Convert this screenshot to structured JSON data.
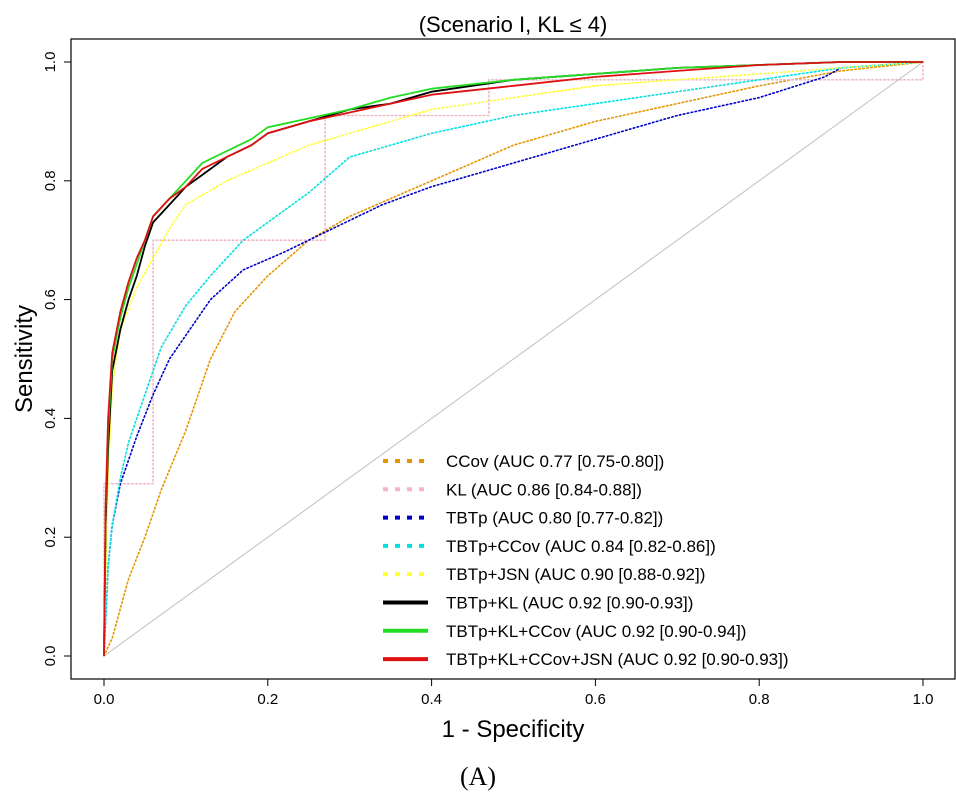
{
  "chart_data": {
    "type": "line",
    "title": "(Scenario I, KL ≤ 4)",
    "xlabel": "1 - Specificity",
    "ylabel": "Sensitivity",
    "xlim": [
      0,
      1
    ],
    "ylim": [
      0,
      1
    ],
    "x_ticks": [
      "0.0",
      "0.2",
      "0.4",
      "0.6",
      "0.8",
      "1.0"
    ],
    "y_ticks": [
      "0.0",
      "0.2",
      "0.4",
      "0.6",
      "0.8",
      "1.0"
    ],
    "grid": false,
    "legend_position": "bottom-right",
    "caption": "(A)",
    "reference_line": {
      "x": [
        0,
        1
      ],
      "y": [
        0,
        1
      ],
      "color": "#c0c0c0"
    },
    "series": [
      {
        "name": "CCov (AUC 0.77 [0.75-0.80])",
        "color": "#e69500",
        "style": "dotted",
        "x": [
          0,
          0.01,
          0.02,
          0.03,
          0.05,
          0.07,
          0.1,
          0.13,
          0.16,
          0.2,
          0.25,
          0.3,
          0.35,
          0.4,
          0.45,
          0.5,
          0.55,
          0.6,
          0.7,
          0.8,
          0.9,
          1.0
        ],
        "y": [
          0,
          0.03,
          0.08,
          0.13,
          0.2,
          0.28,
          0.38,
          0.5,
          0.58,
          0.64,
          0.7,
          0.74,
          0.77,
          0.8,
          0.83,
          0.86,
          0.88,
          0.9,
          0.93,
          0.96,
          0.985,
          1.0
        ]
      },
      {
        "name": "KL (AUC 0.86 [0.84-0.88])",
        "color": "#f4b6c2",
        "style": "dotted",
        "x": [
          0,
          0,
          0.06,
          0.06,
          0.27,
          0.27,
          0.47,
          0.47,
          1.0,
          1.0
        ],
        "y": [
          0,
          0.29,
          0.29,
          0.7,
          0.7,
          0.91,
          0.91,
          0.97,
          0.97,
          1.0
        ]
      },
      {
        "name": "TBTp (AUC 0.80 [0.77-0.82])",
        "color": "#0000c8",
        "style": "dotted",
        "x": [
          0,
          0.005,
          0.01,
          0.02,
          0.04,
          0.06,
          0.08,
          0.1,
          0.13,
          0.17,
          0.22,
          0.28,
          0.34,
          0.4,
          0.45,
          0.5,
          0.55,
          0.6,
          0.65,
          0.7,
          0.8,
          0.88,
          0.9,
          1.0
        ],
        "y": [
          0,
          0.15,
          0.22,
          0.29,
          0.37,
          0.44,
          0.5,
          0.54,
          0.6,
          0.65,
          0.68,
          0.72,
          0.76,
          0.79,
          0.81,
          0.83,
          0.85,
          0.87,
          0.89,
          0.91,
          0.94,
          0.975,
          0.99,
          1.0
        ]
      },
      {
        "name": "TBTp+CCov (AUC 0.84 [0.82-0.86])",
        "color": "#00e0e0",
        "style": "dotted",
        "x": [
          0,
          0.005,
          0.01,
          0.02,
          0.03,
          0.05,
          0.07,
          0.1,
          0.13,
          0.17,
          0.21,
          0.25,
          0.3,
          0.35,
          0.4,
          0.5,
          0.6,
          0.7,
          0.8,
          0.9,
          1.0
        ],
        "y": [
          0,
          0.15,
          0.22,
          0.3,
          0.36,
          0.44,
          0.52,
          0.59,
          0.64,
          0.7,
          0.74,
          0.78,
          0.84,
          0.86,
          0.88,
          0.91,
          0.93,
          0.95,
          0.97,
          0.99,
          1.0
        ]
      },
      {
        "name": "TBTp+JSN (AUC 0.90 [0.88-0.92])",
        "color": "#ffff33",
        "style": "dotted",
        "x": [
          0,
          0.005,
          0.01,
          0.02,
          0.04,
          0.06,
          0.08,
          0.1,
          0.15,
          0.2,
          0.25,
          0.3,
          0.35,
          0.4,
          0.5,
          0.6,
          0.7,
          0.8,
          0.9,
          1.0
        ],
        "y": [
          0,
          0.3,
          0.45,
          0.55,
          0.62,
          0.67,
          0.72,
          0.76,
          0.8,
          0.83,
          0.86,
          0.88,
          0.9,
          0.92,
          0.94,
          0.96,
          0.97,
          0.98,
          0.99,
          1.0
        ]
      },
      {
        "name": "TBTp+KL (AUC 0.92 [0.90-0.93])",
        "color": "#000000",
        "style": "solid",
        "x": [
          0,
          0.002,
          0.005,
          0.01,
          0.02,
          0.03,
          0.04,
          0.05,
          0.06,
          0.08,
          0.1,
          0.12,
          0.15,
          0.18,
          0.2,
          0.25,
          0.3,
          0.35,
          0.4,
          0.5,
          0.6,
          0.7,
          0.8,
          0.9,
          1.0
        ],
        "y": [
          0,
          0.22,
          0.35,
          0.48,
          0.55,
          0.6,
          0.64,
          0.69,
          0.73,
          0.76,
          0.79,
          0.81,
          0.84,
          0.86,
          0.88,
          0.9,
          0.92,
          0.93,
          0.95,
          0.97,
          0.98,
          0.99,
          0.995,
          1.0,
          1.0
        ]
      },
      {
        "name": "TBTp+KL+CCov (AUC 0.92 [0.90-0.94])",
        "color": "#22dd22",
        "style": "solid",
        "x": [
          0,
          0.002,
          0.005,
          0.01,
          0.02,
          0.03,
          0.04,
          0.05,
          0.06,
          0.08,
          0.1,
          0.12,
          0.15,
          0.18,
          0.2,
          0.25,
          0.3,
          0.35,
          0.4,
          0.5,
          0.6,
          0.7,
          0.8,
          0.9,
          1.0
        ],
        "y": [
          0,
          0.24,
          0.38,
          0.5,
          0.57,
          0.62,
          0.66,
          0.7,
          0.74,
          0.77,
          0.8,
          0.83,
          0.85,
          0.87,
          0.89,
          0.905,
          0.92,
          0.94,
          0.955,
          0.97,
          0.98,
          0.99,
          0.995,
          1.0,
          1.0
        ]
      },
      {
        "name": "TBTp+KL+CCov+JSN (AUC 0.92 [0.90-0.93])",
        "color": "#dd1111",
        "style": "solid",
        "x": [
          0,
          0.002,
          0.005,
          0.01,
          0.02,
          0.03,
          0.04,
          0.05,
          0.06,
          0.08,
          0.1,
          0.12,
          0.15,
          0.18,
          0.2,
          0.25,
          0.3,
          0.35,
          0.4,
          0.5,
          0.6,
          0.7,
          0.8,
          0.9,
          1.0
        ],
        "y": [
          0,
          0.25,
          0.4,
          0.51,
          0.58,
          0.63,
          0.67,
          0.7,
          0.74,
          0.77,
          0.79,
          0.82,
          0.84,
          0.86,
          0.88,
          0.9,
          0.915,
          0.93,
          0.945,
          0.96,
          0.975,
          0.985,
          0.995,
          1.0,
          1.0
        ]
      }
    ]
  }
}
